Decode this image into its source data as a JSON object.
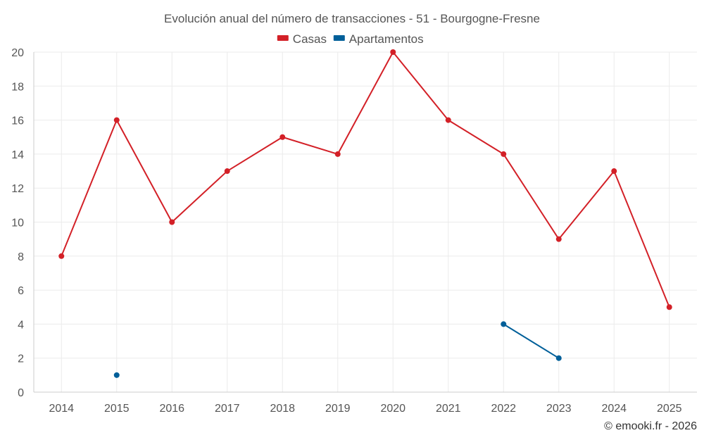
{
  "chart_data": {
    "type": "line",
    "title": "Evolución anual del número de transacciones - 51 - Bourgogne-Fresne",
    "xlabel": "",
    "ylabel": "",
    "categories": [
      "2014",
      "2015",
      "2016",
      "2017",
      "2018",
      "2019",
      "2020",
      "2021",
      "2022",
      "2023",
      "2024",
      "2025"
    ],
    "ylim": [
      0,
      20
    ],
    "yticks": [
      0,
      2,
      4,
      6,
      8,
      10,
      12,
      14,
      16,
      18,
      20
    ],
    "grid": true,
    "legend_position": "top-center",
    "series": [
      {
        "name": "Casas",
        "color": "#d32027",
        "values": [
          8,
          16,
          10,
          13,
          15,
          14,
          20,
          16,
          14,
          9,
          13,
          5
        ]
      },
      {
        "name": "Apartamentos",
        "color": "#005f99",
        "values": [
          null,
          1,
          null,
          null,
          null,
          null,
          null,
          null,
          4,
          2,
          null,
          null
        ]
      }
    ]
  },
  "credit": "© emooki.fr - 2026"
}
